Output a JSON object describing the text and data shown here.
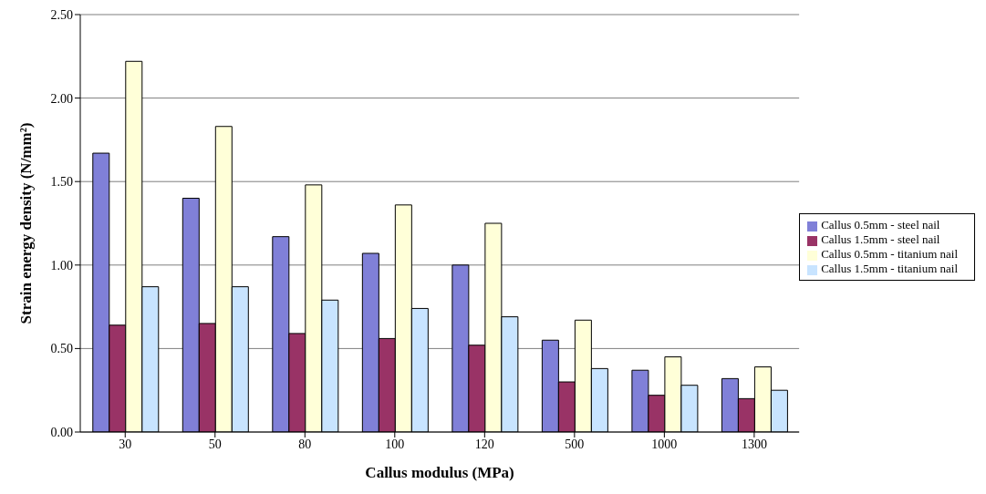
{
  "chart_data": {
    "type": "bar",
    "xlabel": "Callus modulus (MPa)",
    "ylabel": "Strain energy density (N/mm²)",
    "categories": [
      "30",
      "50",
      "80",
      "100",
      "120",
      "500",
      "1000",
      "1300"
    ],
    "series": [
      {
        "name": "Callus 0.5mm - steel nail",
        "color": "#8080d8",
        "values": [
          1.67,
          1.4,
          1.17,
          1.07,
          1.0,
          0.55,
          0.37,
          0.32
        ]
      },
      {
        "name": "Callus 1.5mm - steel nail",
        "color": "#993366",
        "values": [
          0.64,
          0.65,
          0.59,
          0.56,
          0.52,
          0.3,
          0.22,
          0.2
        ]
      },
      {
        "name": "Callus 0.5mm - titanium nail",
        "color": "#ffffd8",
        "values": [
          2.22,
          1.83,
          1.48,
          1.36,
          1.25,
          0.67,
          0.45,
          0.39
        ]
      },
      {
        "name": "Callus 1.5mm - titanium nail",
        "color": "#c8e4ff",
        "values": [
          0.87,
          0.87,
          0.79,
          0.74,
          0.69,
          0.38,
          0.28,
          0.25
        ]
      }
    ],
    "ylim": [
      0,
      2.5
    ],
    "yticks": [
      {
        "value": 0,
        "label": "0.00"
      },
      {
        "value": 0.5,
        "label": "0.50"
      },
      {
        "value": 1,
        "label": "1.00"
      },
      {
        "value": 1.5,
        "label": "1.50"
      },
      {
        "value": 2,
        "label": "2.00"
      },
      {
        "value": 2.5,
        "label": "2.50"
      }
    ],
    "grid": "y",
    "legend": "right"
  }
}
